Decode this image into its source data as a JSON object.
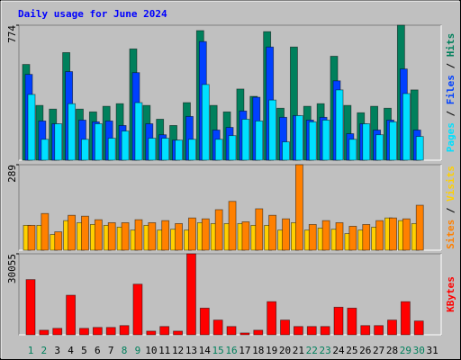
{
  "title": "Daily usage for June 2024",
  "legend_separator": " / ",
  "chart_data": [
    {
      "type": "bar",
      "ylim": [
        0,
        774
      ],
      "yticks": [
        774
      ],
      "series": [
        {
          "name": "Pages",
          "color": "#00e0ff",
          "values": [
            377,
            120,
            209,
            324,
            120,
            209,
            126,
            167,
            330,
            126,
            126,
            115,
            120,
            434,
            120,
            141,
            235,
            225,
            345,
            105,
            256,
            220,
            230,
            403,
            120,
            209,
            146,
            220,
            382,
            136,
            null
          ]
        },
        {
          "name": "Files",
          "color": "#0040ff",
          "values": [
            492,
            225,
            209,
            508,
            230,
            220,
            225,
            199,
            502,
            209,
            146,
            115,
            251,
            680,
            173,
            188,
            282,
            361,
            649,
            246,
            256,
            230,
            246,
            455,
            152,
            209,
            173,
            230,
            523,
            173,
            null
          ]
        },
        {
          "name": "Hits",
          "color": "#00805c",
          "values": [
            549,
            314,
            293,
            617,
            293,
            277,
            309,
            324,
            638,
            314,
            235,
            199,
            330,
            743,
            314,
            277,
            408,
            366,
            737,
            298,
            649,
            309,
            324,
            596,
            314,
            272,
            309,
            298,
            774,
            403,
            null
          ]
        }
      ]
    },
    {
      "type": "bar",
      "ylim": [
        0,
        289
      ],
      "yticks": [
        289
      ],
      "series": [
        {
          "name": "Sites",
          "color": "#ff8000",
          "values": [
            84,
            124,
            62,
            118,
            115,
            103,
            93,
            93,
            103,
            93,
            100,
            90,
            109,
            106,
            137,
            165,
            96,
            140,
            118,
            106,
            289,
            87,
            100,
            93,
            81,
            87,
            100,
            109,
            106,
            152,
            null
          ]
        },
        {
          "name": "Visits",
          "color": "#ffd000",
          "values": [
            84,
            84,
            53,
            100,
            93,
            87,
            84,
            78,
            68,
            84,
            68,
            71,
            68,
            93,
            90,
            90,
            90,
            84,
            84,
            68,
            93,
            68,
            75,
            71,
            56,
            68,
            78,
            109,
            100,
            90,
            null
          ]
        }
      ]
    },
    {
      "type": "bar",
      "ylim": [
        0,
        30055
      ],
      "yticks": [
        30055
      ],
      "categories": [
        "1",
        "2",
        "3",
        "4",
        "5",
        "6",
        "7",
        "8",
        "9",
        "10",
        "11",
        "12",
        "13",
        "14",
        "15",
        "16",
        "17",
        "18",
        "19",
        "20",
        "21",
        "22",
        "23",
        "24",
        "25",
        "26",
        "27",
        "28",
        "29",
        "30",
        "31"
      ],
      "category_colors": [
        "#00805c",
        "#00805c",
        "#000000",
        "#000000",
        "#000000",
        "#000000",
        "#000000",
        "#00805c",
        "#00805c",
        "#000000",
        "#000000",
        "#000000",
        "#000000",
        "#000000",
        "#00805c",
        "#00805c",
        "#000000",
        "#000000",
        "#000000",
        "#000000",
        "#000000",
        "#00805c",
        "#00805c",
        "#000000",
        "#000000",
        "#000000",
        "#000000",
        "#000000",
        "#00805c",
        "#00805c",
        "#000000"
      ],
      "series": [
        {
          "name": "KBytes",
          "color": "#ff0000",
          "values": [
            20490,
            1708,
            2391,
            14685,
            2391,
            2732,
            2732,
            3415,
            18782,
            1366,
            3074,
            1366,
            30055,
            9904,
            5464,
            3074,
            683,
            1708,
            12294,
            5464,
            3074,
            3074,
            3074,
            10245,
            9904,
            3415,
            3415,
            5464,
            12294,
            5123,
            null
          ]
        }
      ]
    }
  ]
}
